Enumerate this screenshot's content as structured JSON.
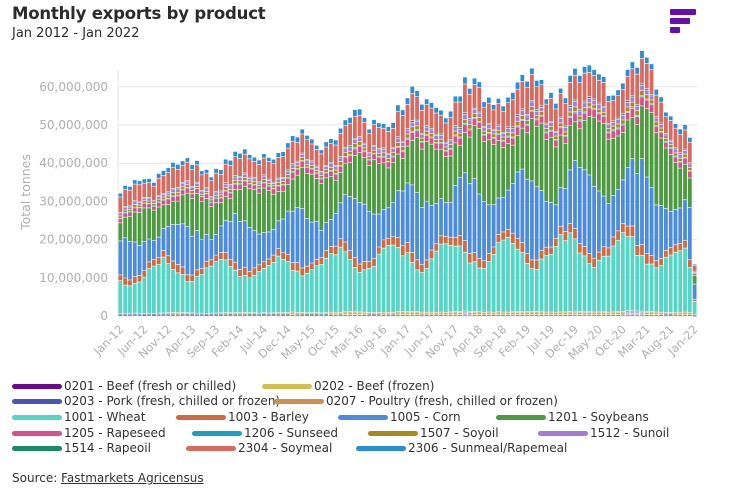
{
  "header": {
    "title": "Monthly exports by product",
    "subtitle": "Jan 2012 - Jan 2022",
    "logo_icon": "fastmarkets-logo-icon"
  },
  "footer": {
    "source_label": "Source:",
    "source_link": "Fastmarkets Agricensus"
  },
  "colors": {
    "brand": "#6a0dad",
    "grid": "#e6e6e6",
    "axis_text": "#b0b0b0"
  },
  "chart_data": {
    "type": "bar",
    "stacked": true,
    "title": "Monthly exports by product",
    "subtitle": "Jan 2012 - Jan 2022",
    "xlabel": "",
    "ylabel": "Total tonnes",
    "ylim": [
      0,
      65000000
    ],
    "yticks": [
      0,
      10000000,
      20000000,
      30000000,
      40000000,
      50000000,
      60000000
    ],
    "ytick_labels": [
      "0",
      "10,000,000",
      "20,000,000",
      "30,000,000",
      "40,000,000",
      "50,000,000",
      "60,000,000"
    ],
    "xtick_labels": [
      "Jan-12",
      "Jun-12",
      "Nov-12",
      "Apr-13",
      "Sep-13",
      "Feb-14",
      "Jul-14",
      "Dec-14",
      "May-15",
      "Oct-15",
      "Mar-16",
      "Aug-16",
      "Jan-17",
      "Jun-17",
      "Nov-17",
      "Apr-18",
      "Sep-18",
      "Feb-19",
      "Jul-19",
      "Dec-19",
      "May-20",
      "Oct-20",
      "Mar-21",
      "Aug-21",
      "Jan-22"
    ],
    "xtick_step_months": 5,
    "grid": true,
    "legend_position": "bottom",
    "start_month": "2012-01",
    "month_count": 121,
    "series": [
      {
        "name": "0201 - Beef (fresh or chilled)",
        "color": "#6a0a8a",
        "base": 0.15,
        "growth": 0.1
      },
      {
        "name": "0202 - Beef (frozen)",
        "color": "#d2c050",
        "base": 0.15,
        "growth": 0.1
      },
      {
        "name": "0203 - Pork (fresh, chilled or frozen)",
        "color": "#4a55b8",
        "base": 0.12,
        "growth": 0.08
      },
      {
        "name": "0207 - Poultry (fresh, chilled or frozen)",
        "color": "#d29050",
        "base": 0.2,
        "growth": 0.1
      },
      {
        "name": "1001 - Wheat",
        "color": "#55d5c5",
        "base": 9.5,
        "growth": 5.5
      },
      {
        "name": "1003 - Barley",
        "color": "#d06a40",
        "base": 1.6,
        "growth": 0.6
      },
      {
        "name": "1005 - Corn",
        "color": "#4c8ce0",
        "base": 7.0,
        "growth": 7.5
      },
      {
        "name": "1201 - Soybeans",
        "color": "#4e9a40",
        "base": 6.5,
        "growth": 8.0
      },
      {
        "name": "1205 - Rapeseed",
        "color": "#d85088",
        "base": 1.0,
        "growth": 0.8
      },
      {
        "name": "1206 - Sunseed",
        "color": "#1aa0c0",
        "base": 0.15,
        "growth": 0.1
      },
      {
        "name": "1507 - Soyoil",
        "color": "#a88a1a",
        "base": 0.6,
        "growth": 0.4
      },
      {
        "name": "1512 - Sunoil",
        "color": "#a87ad8",
        "base": 0.6,
        "growth": 0.5
      },
      {
        "name": "1514 - Rapeoil",
        "color": "#1a8a60",
        "base": 0.25,
        "growth": 0.1
      },
      {
        "name": "2304 - Soymeal",
        "color": "#d86a60",
        "base": 4.0,
        "growth": 1.8
      },
      {
        "name": "2306 - Sunmeal/Rapemeal",
        "color": "#2590d8",
        "base": 1.0,
        "growth": 0.5
      }
    ],
    "totals_sample": {
      "2012-01": 30500000,
      "2012-07": 38000000,
      "2014-01": 41000000,
      "2016-03": 50000000,
      "2017-05": 56000000,
      "2020-05": 62000000,
      "2021-03": 63500000,
      "2021-12": 47000000,
      "2022-01": 13500000
    }
  },
  "legend": {
    "items": [
      {
        "label": "0201 - Beef (fresh or chilled)",
        "color": "#6a0a8a"
      },
      {
        "label": "0202 - Beef (frozen)",
        "color": "#d2c050"
      },
      {
        "label": "0203 - Pork (fresh, chilled or frozen)",
        "color": "#4a55b8"
      },
      {
        "label": "0207 - Poultry (fresh, chilled or frozen)",
        "color": "#d29050"
      },
      {
        "label": "1001 - Wheat",
        "color": "#55d5c5"
      },
      {
        "label": "1003 - Barley",
        "color": "#d06a40"
      },
      {
        "label": "1005 - Corn",
        "color": "#4c8ce0"
      },
      {
        "label": "1201 - Soybeans",
        "color": "#4e9a40"
      },
      {
        "label": "1205 - Rapeseed",
        "color": "#d85088"
      },
      {
        "label": "1206 - Sunseed",
        "color": "#1aa0c0"
      },
      {
        "label": "1507 - Soyoil",
        "color": "#a88a1a"
      },
      {
        "label": "1512 - Sunoil",
        "color": "#a87ad8"
      },
      {
        "label": "1514 - Rapeoil",
        "color": "#1a8a60"
      },
      {
        "label": "2304 - Soymeal",
        "color": "#d86a60"
      },
      {
        "label": "2306 - Sunmeal/Rapemeal",
        "color": "#2590d8"
      }
    ]
  }
}
